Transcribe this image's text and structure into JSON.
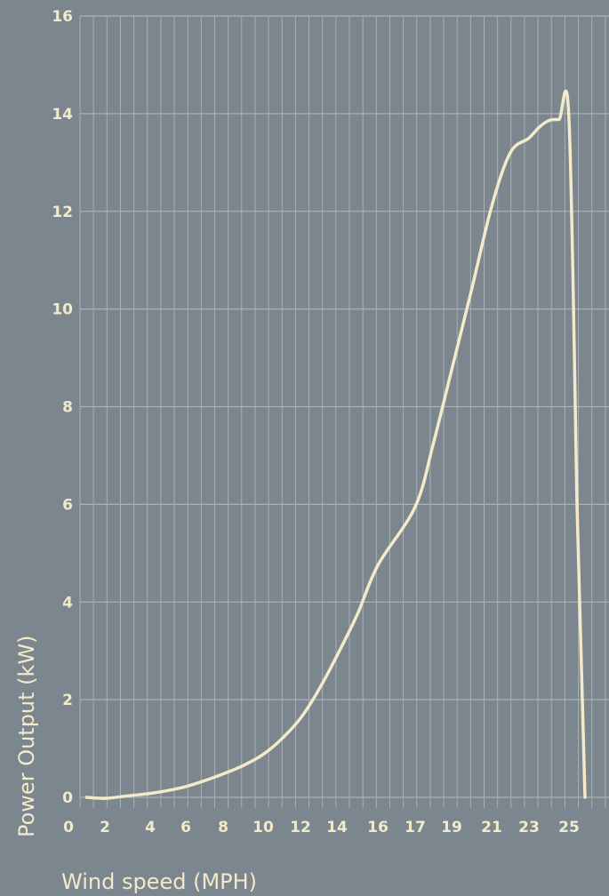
{
  "chart_data": {
    "type": "line",
    "xlabel": "Wind speed (MPH)",
    "ylabel": "Power Output (kW)",
    "x_ticks": [
      "0",
      "2",
      "4",
      "6",
      "8",
      "10",
      "12",
      "14",
      "16",
      "17",
      "19",
      "21",
      "23",
      "25"
    ],
    "y_ticks": [
      "0",
      "2",
      "4",
      "6",
      "8",
      "10",
      "12",
      "14",
      "16"
    ],
    "ylim": [
      0,
      16
    ],
    "grid": true,
    "series": [
      {
        "x": [
          1,
          2,
          3,
          4,
          5,
          6,
          7,
          8,
          9,
          10,
          11,
          12,
          13,
          14,
          15,
          16,
          17,
          18,
          19,
          20,
          21,
          22,
          23,
          23.5,
          24,
          24.5,
          25,
          25.4,
          25.8
        ],
        "values": [
          0,
          -0.02,
          0.03,
          0.08,
          0.14,
          0.22,
          0.34,
          0.48,
          0.65,
          0.88,
          1.2,
          1.62,
          2.2,
          2.9,
          3.75,
          4.75,
          5.95,
          7.25,
          8.75,
          10.4,
          12.1,
          13.2,
          13.5,
          13.72,
          13.86,
          13.88,
          13.88,
          6.0,
          0.0
        ],
        "color": "#f2eac8"
      }
    ]
  }
}
